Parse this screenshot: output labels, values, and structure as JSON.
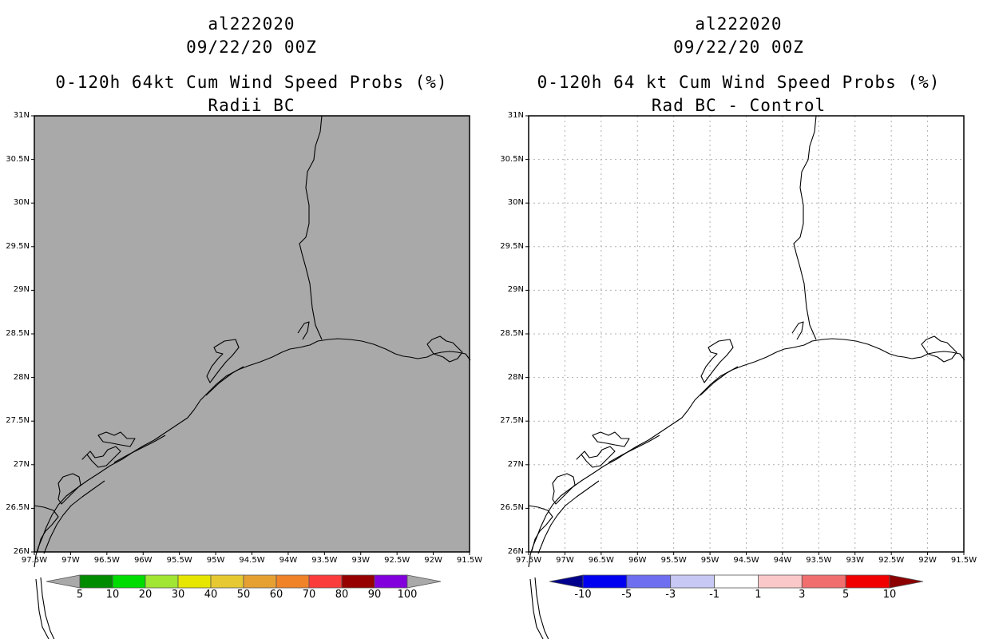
{
  "panels": [
    {
      "storm": "al222020",
      "date": "09/22/20 00Z",
      "title": "0-120h 64kt Cum Wind Speed Probs (%)",
      "subtitle": "Radii BC",
      "background": "#a9a9a9",
      "gridlines": false,
      "colorbar": {
        "labels": [
          "5",
          "10",
          "20",
          "30",
          "40",
          "50",
          "60",
          "70",
          "80",
          "90",
          "100"
        ],
        "colors": [
          "#a9a9a9",
          "#008c00",
          "#00dc00",
          "#a0e632",
          "#e6e600",
          "#e6c832",
          "#e6a032",
          "#f08228",
          "#fa3c3c",
          "#960000",
          "#8200dc",
          "#a9a9a9"
        ]
      }
    },
    {
      "storm": "al222020",
      "date": "09/22/20 00Z",
      "title": "0-120h 64 kt Cum Wind Speed Probs (%)",
      "subtitle": "Rad BC - Control",
      "background": "#ffffff",
      "gridlines": true,
      "colorbar": {
        "labels": [
          "-10",
          "-5",
          "-3",
          "-1",
          "1",
          "3",
          "5",
          "10"
        ],
        "colors": [
          "#00008c",
          "#0000f0",
          "#6e6ef0",
          "#c8c8f5",
          "#ffffff",
          "#fac8c8",
          "#f06e6e",
          "#f00000",
          "#8c0000"
        ]
      }
    }
  ],
  "lat_labels": [
    "31N",
    "30.5N",
    "30N",
    "29.5N",
    "29N",
    "28.5N",
    "28N",
    "27.5N",
    "27N",
    "26.5N",
    "26N"
  ],
  "lon_labels": [
    "97.5W",
    "97W",
    "96.5W",
    "96W",
    "95.5W",
    "95W",
    "94.5W",
    "94W",
    "93.5W",
    "93W",
    "92.5W",
    "92W",
    "91.5W"
  ]
}
